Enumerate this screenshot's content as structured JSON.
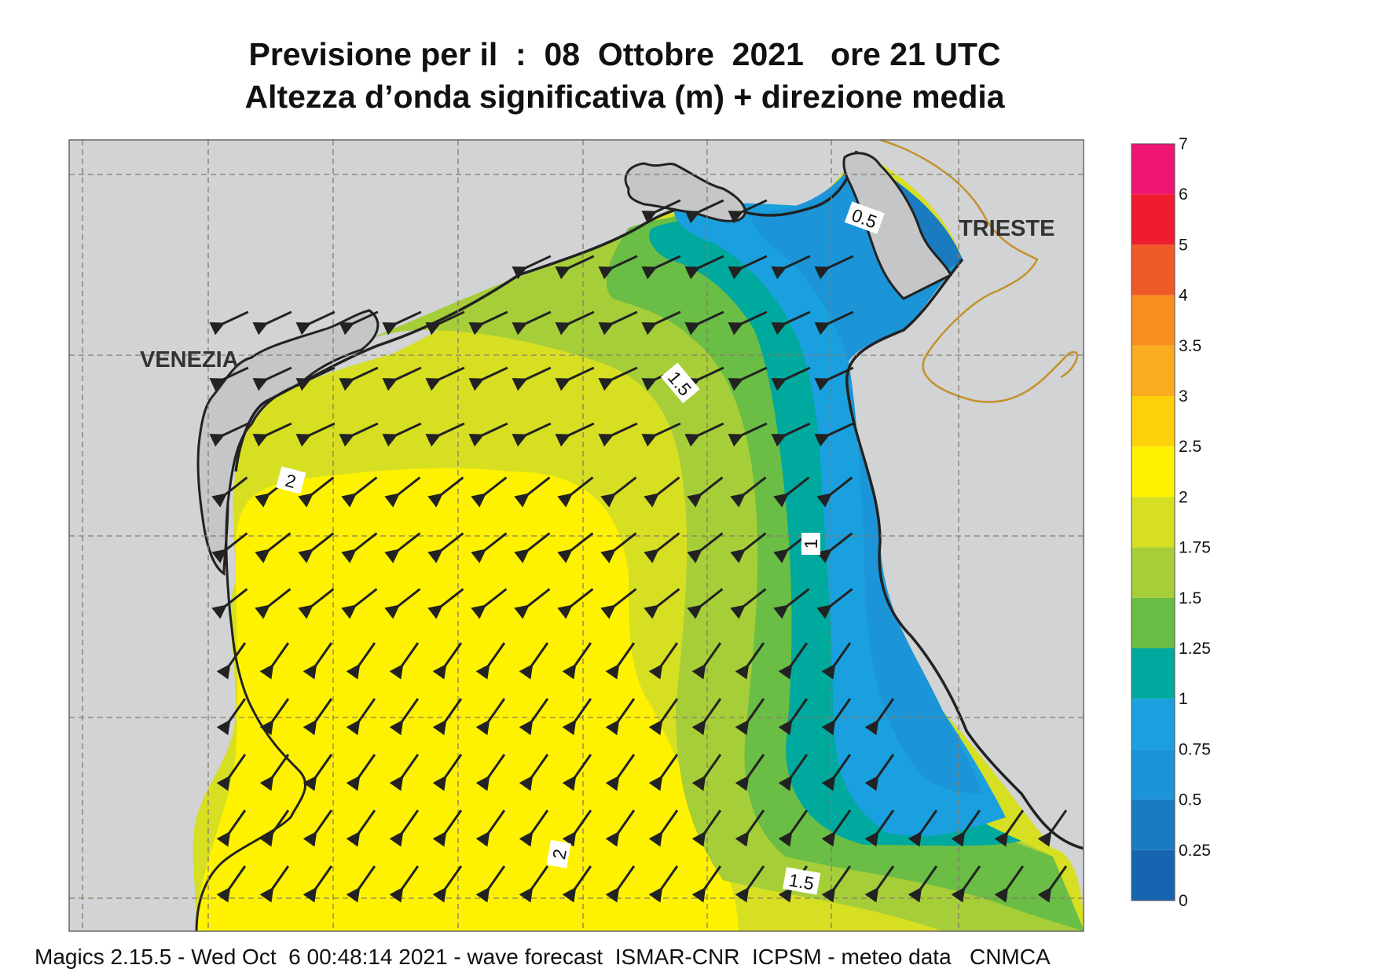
{
  "title": {
    "line1": "Previsione per il  :  08  Ottobre  2021   ore 21 UTC",
    "line2": "Altezza d’onda significativa (m) + direzione media"
  },
  "map": {
    "cities": [
      {
        "id": "venezia",
        "label": "VENEZIA"
      },
      {
        "id": "trieste",
        "label": "TRIESTE"
      }
    ],
    "contour_labels": [
      "0.5",
      "1.5",
      "2",
      "1",
      "2",
      "1.5"
    ],
    "direction": "SW"
  },
  "legend": {
    "entries": [
      {
        "label": "7",
        "color": "#ee1670"
      },
      {
        "label": "6",
        "color": "#ee1c2e"
      },
      {
        "label": "5",
        "color": "#f05a28"
      },
      {
        "label": "4",
        "color": "#f7901e"
      },
      {
        "label": "3.5",
        "color": "#f9ad1e"
      },
      {
        "label": "3",
        "color": "#fdd10a"
      },
      {
        "label": "2.5",
        "color": "#fff200"
      },
      {
        "label": "2",
        "color": "#d7df23"
      },
      {
        "label": "1.75",
        "color": "#a6ce39"
      },
      {
        "label": "1.5",
        "color": "#6abd45"
      },
      {
        "label": "1.25",
        "color": "#00a99d"
      },
      {
        "label": "1",
        "color": "#1aa0de"
      },
      {
        "label": "0.75",
        "color": "#1b95d8"
      },
      {
        "label": "0.5",
        "color": "#1a7bc0"
      },
      {
        "label": "0.25",
        "color": "#1565b0"
      },
      {
        "label": "0",
        "color": ""
      }
    ]
  },
  "footer": "Magics 2.15.5 - Wed Oct  6 00:48:14 2021 - wave forecast  ISMAR-CNR  ICPSM - meteo data   CNMCA"
}
